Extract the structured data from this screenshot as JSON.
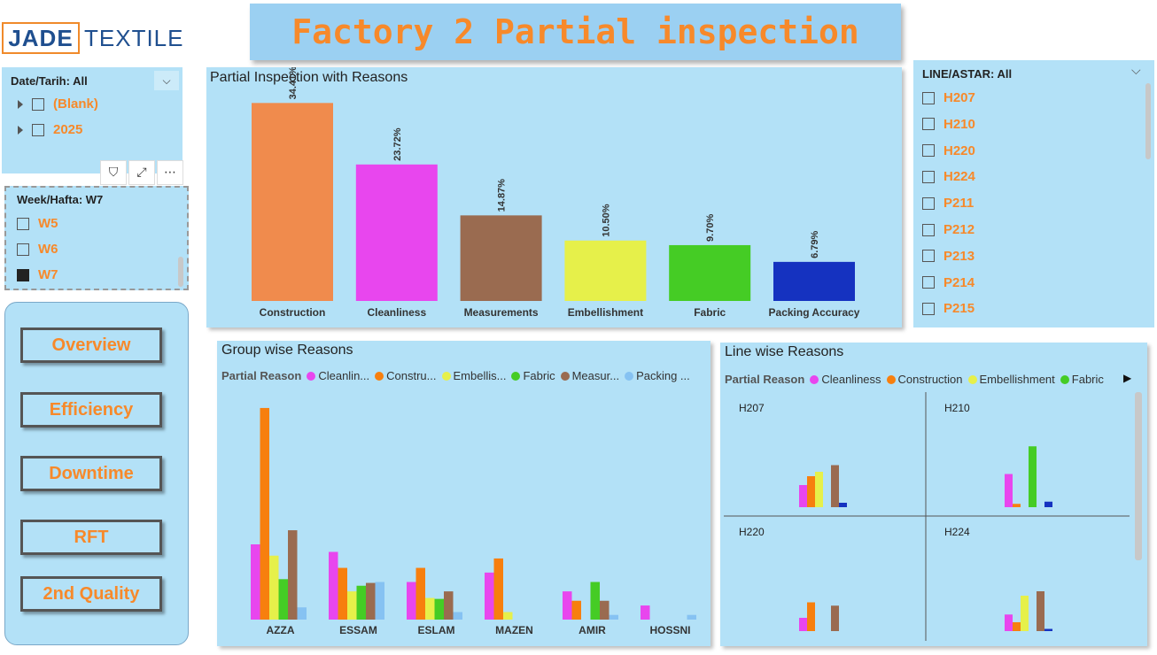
{
  "logo": {
    "part1": "JADE",
    "part2": "TEXTILE"
  },
  "title": "Factory 2 Partial inspection",
  "date_slicer": {
    "title": "Date/Tarih: All",
    "items": [
      {
        "label": "(Blank)"
      },
      {
        "label": "2025"
      }
    ]
  },
  "toolbar": {
    "filter": "⛉",
    "focus": "⤢",
    "more": "⋯"
  },
  "week_slicer": {
    "title": "Week/Hafta: W7",
    "items": [
      {
        "label": "W5",
        "checked": false
      },
      {
        "label": "W6",
        "checked": false
      },
      {
        "label": "W7",
        "checked": true
      }
    ]
  },
  "nav": {
    "overview": "Overview",
    "efficiency": "Efficiency",
    "downtime": "Downtime",
    "rft": "RFT",
    "quality2": "2nd Quality"
  },
  "line_slicer": {
    "title": "LINE/ASTAR: All",
    "items": [
      "H207",
      "H210",
      "H220",
      "H224",
      "P211",
      "P212",
      "P213",
      "P214",
      "P215"
    ]
  },
  "colors": {
    "accent": "#f7892a",
    "panel": "#b3e1f7",
    "title_banner": "#9bd0f2"
  },
  "chart_data": [
    {
      "type": "bar",
      "title": "Partial Inspection with Reasons",
      "categories": [
        "Construction",
        "Cleanliness",
        "Measurements",
        "Embellishment",
        "Fabric",
        "Packing Accuracy"
      ],
      "values": [
        34.41,
        23.72,
        14.87,
        10.5,
        9.7,
        6.79
      ],
      "labels": [
        "34.41%",
        "23.72%",
        "14.87%",
        "10.50%",
        "9.70%",
        "6.79%"
      ],
      "colors": [
        "#f08b4d",
        "#e846ee",
        "#9a6b50",
        "#e6f04a",
        "#45cc25",
        "#1532c0"
      ],
      "ylim": [
        0,
        36
      ]
    },
    {
      "type": "bar",
      "title": "Group wise Reasons",
      "legend_title": "Partial Reason",
      "legend": [
        "Cleanlin...",
        "Constru...",
        "Embellis...",
        "Fabric",
        "Measur...",
        "Packing ..."
      ],
      "categories": [
        "AZZA",
        "ESSAM",
        "ESLAM",
        "MAZEN",
        "AMIR",
        "HOSSNI"
      ],
      "series": [
        {
          "name": "Cleanliness",
          "color": "#e846ee",
          "values": [
            8,
            7.2,
            4,
            5,
            3,
            1.5
          ]
        },
        {
          "name": "Construction",
          "color": "#f77f0e",
          "values": [
            22.5,
            5.5,
            5.5,
            6.5,
            2,
            0
          ]
        },
        {
          "name": "Embellishment",
          "color": "#e6f04a",
          "values": [
            6.8,
            3,
            2.3,
            0.8,
            0,
            0
          ]
        },
        {
          "name": "Fabric",
          "color": "#45cc25",
          "values": [
            4.3,
            3.6,
            2.2,
            0,
            4,
            0
          ]
        },
        {
          "name": "Measurements",
          "color": "#9a6b50",
          "values": [
            9.5,
            3.9,
            3,
            0,
            2,
            0
          ]
        },
        {
          "name": "Packing Accuracy",
          "color": "#86c2f2",
          "values": [
            1.3,
            4,
            0.8,
            0,
            0.5,
            0.5
          ]
        }
      ],
      "ylim": [
        0,
        24
      ]
    },
    {
      "type": "bar",
      "title": "Line wise Reasons",
      "legend_title": "Partial Reason",
      "legend": [
        "Cleanliness",
        "Construction",
        "Embellishment",
        "Fabric"
      ],
      "series_colors": [
        "#e846ee",
        "#f77f0e",
        "#e6f04a",
        "#45cc25",
        "#9a6b50",
        "#1532c0"
      ],
      "panels": [
        {
          "name": "H207",
          "values": [
            2,
            2.8,
            3.2,
            0,
            3.8,
            0.4
          ]
        },
        {
          "name": "H210",
          "values": [
            3,
            0.3,
            0,
            5.5,
            0,
            0.5
          ]
        },
        {
          "name": "H220",
          "values": [
            1.2,
            2.6,
            0,
            0,
            2.3,
            0
          ]
        },
        {
          "name": "H224",
          "values": [
            1.5,
            0.8,
            3.2,
            0,
            3.6,
            0.2
          ]
        }
      ],
      "ylim": [
        0,
        8
      ]
    }
  ]
}
